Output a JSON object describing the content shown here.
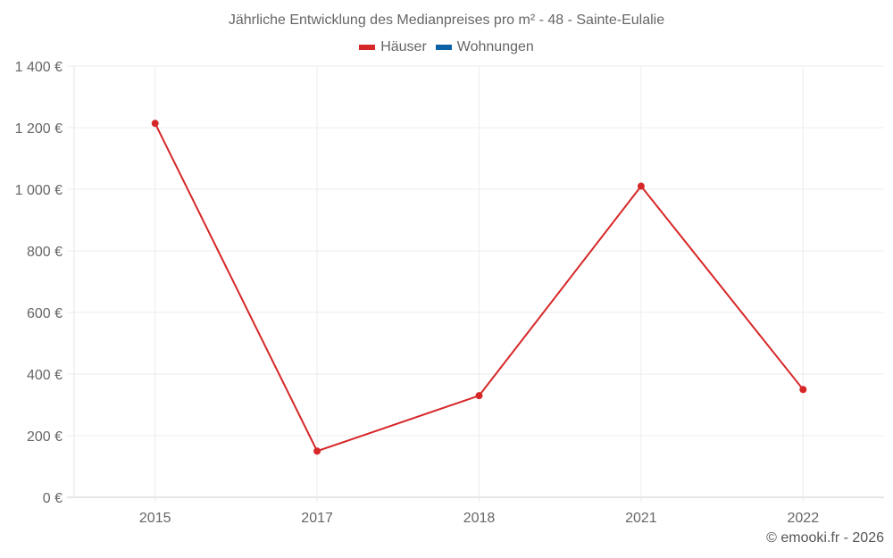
{
  "title": "Jährliche Entwicklung des Medianpreises pro m² - 48 - Sainte-Eulalie",
  "legend": [
    {
      "label": "Häuser",
      "color": "#d62728"
    },
    {
      "label": "Wohnungen",
      "color": "#0b62a4"
    }
  ],
  "credit": "© emooki.fr - 2026",
  "chart_data": {
    "type": "line",
    "title": "Jährliche Entwicklung des Medianpreises pro m² - 48 - Sainte-Eulalie",
    "xlabel": "",
    "ylabel": "",
    "categories": [
      "2015",
      "2017",
      "2018",
      "2021",
      "2022"
    ],
    "series": [
      {
        "name": "Häuser",
        "color": "#d62728",
        "values": [
          1214,
          150,
          330,
          1010,
          350
        ]
      },
      {
        "name": "Wohnungen",
        "color": "#0b62a4",
        "values": [
          null,
          null,
          null,
          null,
          null
        ]
      }
    ],
    "ylim": [
      0,
      1400
    ],
    "yticks": [
      0,
      200,
      400,
      600,
      800,
      1000,
      1200,
      1400
    ],
    "ytick_labels": [
      "0 €",
      "200 €",
      "400 €",
      "600 €",
      "800 €",
      "1 000 €",
      "1 200 €",
      "1 400 €"
    ],
    "grid": true,
    "legend_position": "top"
  }
}
